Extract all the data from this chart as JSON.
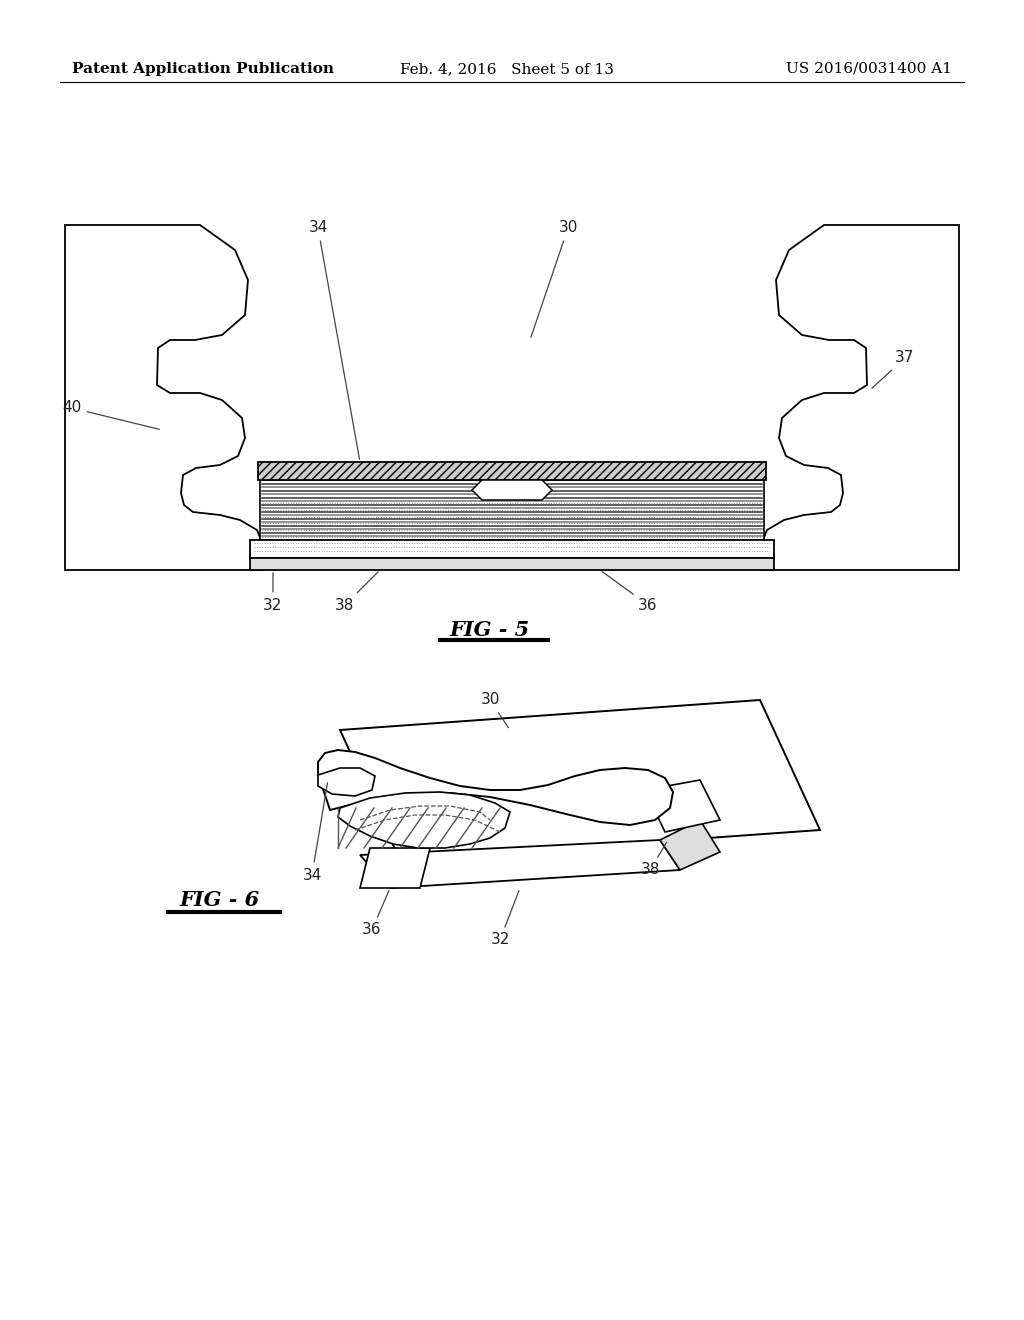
{
  "background_color": "#ffffff",
  "header_left": "Patent Application Publication",
  "header_mid": "Feb. 4, 2016   Sheet 5 of 13",
  "header_right": "US 2016/0031400 A1",
  "header_fontsize": 11,
  "fig5_label": "FIG - 5",
  "fig6_label": "FIG - 6",
  "line_color": "#000000",
  "label_fontsize": 11
}
